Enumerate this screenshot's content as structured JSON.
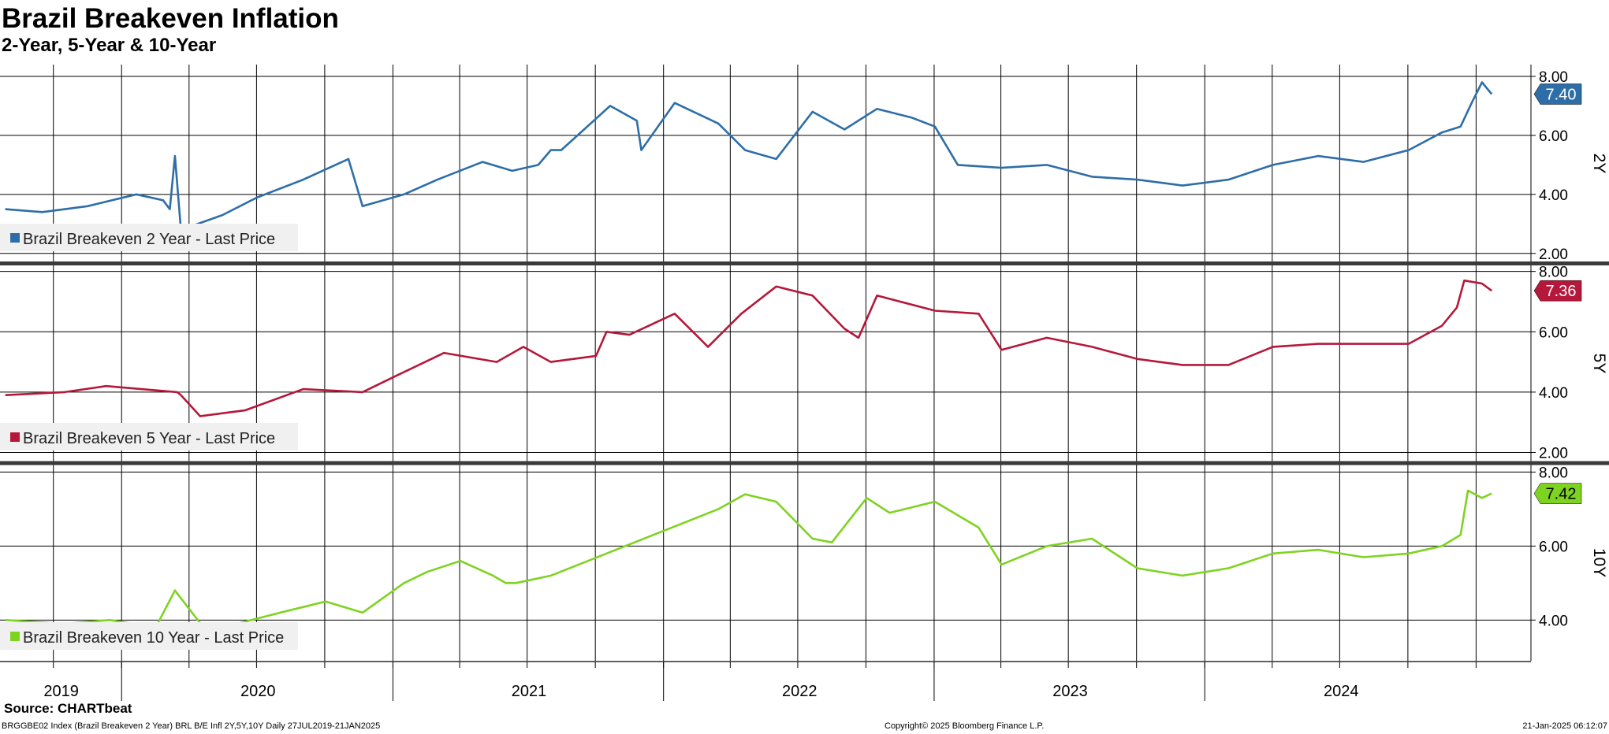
{
  "title": "Brazil Breakeven Inflation",
  "subtitle": "2-Year, 5-Year & 10-Year",
  "source": "Source: CHARTbeat",
  "footer": {
    "left": "BRGGBE02 Index (Brazil Breakeven 2 Year) BRL B/E Infl 2Y,5Y,10Y  Daily 27JUL2019-21JAN2025",
    "middle": "Copyright© 2025 Bloomberg Finance L.P.",
    "right": "21-Jan-2025 06:12:07"
  },
  "colors": {
    "2Y": "#2e6ea8",
    "5Y": "#b5183a",
    "10Y": "#7ed321"
  },
  "chart_data": [
    {
      "type": "line",
      "panel_label": "2Y",
      "series": [
        {
          "name": "Brazil Breakeven 2 Year - Last Price",
          "last_value": "7.40",
          "x": [
            "2019-07-27",
            "2019-09-15",
            "2019-11-15",
            "2020-01-20",
            "2020-02-25",
            "2020-03-05",
            "2020-03-12",
            "2020-03-20",
            "2020-05-15",
            "2020-07-01",
            "2020-09-01",
            "2020-11-01",
            "2020-11-20",
            "2021-01-15",
            "2021-03-01",
            "2021-05-01",
            "2021-06-10",
            "2021-07-15",
            "2021-08-01",
            "2021-08-15",
            "2021-10-20",
            "2021-11-25",
            "2021-12-01",
            "2022-01-15",
            "2022-03-15",
            "2022-04-20",
            "2022-06-01",
            "2022-07-20",
            "2022-09-01",
            "2022-10-15",
            "2022-12-01",
            "2023-01-01",
            "2023-02-01",
            "2023-04-01",
            "2023-06-01",
            "2023-08-01",
            "2023-10-01",
            "2023-12-01",
            "2024-02-01",
            "2024-04-01",
            "2024-06-01",
            "2024-08-01",
            "2024-10-01",
            "2024-11-15",
            "2024-12-10",
            "2024-12-25",
            "2025-01-08",
            "2025-01-21"
          ],
          "values": [
            3.5,
            3.4,
            3.6,
            4.0,
            3.8,
            3.5,
            5.3,
            2.8,
            3.3,
            3.9,
            4.5,
            5.2,
            3.6,
            4.0,
            4.5,
            5.1,
            4.8,
            5.0,
            5.5,
            5.5,
            7.0,
            6.5,
            5.5,
            7.1,
            6.4,
            5.5,
            5.2,
            6.8,
            6.2,
            6.9,
            6.6,
            6.3,
            5.0,
            4.9,
            5.0,
            4.6,
            4.5,
            4.3,
            4.5,
            5.0,
            5.3,
            5.1,
            5.5,
            6.1,
            6.3,
            7.1,
            7.8,
            7.4
          ]
        }
      ],
      "y_ticks": [
        "8.00",
        "6.00",
        "4.00",
        "2.00"
      ],
      "ylim": [
        1.7,
        8.4
      ],
      "grid": true,
      "legend_position": "bottom-left"
    },
    {
      "type": "line",
      "panel_label": "5Y",
      "series": [
        {
          "name": "Brazil Breakeven 5 Year - Last Price",
          "last_value": "7.36",
          "x": [
            "2019-07-27",
            "2019-10-15",
            "2019-12-10",
            "2020-03-15",
            "2020-03-20",
            "2020-04-15",
            "2020-06-15",
            "2020-09-01",
            "2020-11-20",
            "2021-01-01",
            "2021-03-10",
            "2021-05-20",
            "2021-06-25",
            "2021-08-01",
            "2021-10-01",
            "2021-10-15",
            "2021-11-15",
            "2022-01-15",
            "2022-03-01",
            "2022-04-15",
            "2022-06-01",
            "2022-07-20",
            "2022-09-01",
            "2022-09-20",
            "2022-10-15",
            "2023-01-01",
            "2023-03-01",
            "2023-04-01",
            "2023-06-01",
            "2023-08-01",
            "2023-10-01",
            "2023-12-01",
            "2024-02-01",
            "2024-04-01",
            "2024-06-01",
            "2024-08-01",
            "2024-10-01",
            "2024-11-15",
            "2024-12-05",
            "2024-12-15",
            "2025-01-08",
            "2025-01-21"
          ],
          "values": [
            3.9,
            4.0,
            4.2,
            4.0,
            3.9,
            3.2,
            3.4,
            4.1,
            4.0,
            4.5,
            5.3,
            5.0,
            5.5,
            5.0,
            5.2,
            6.0,
            5.9,
            6.6,
            5.5,
            6.6,
            7.5,
            7.2,
            6.1,
            5.8,
            7.2,
            6.7,
            6.6,
            5.4,
            5.8,
            5.5,
            5.1,
            4.9,
            4.9,
            5.5,
            5.6,
            5.6,
            5.6,
            6.2,
            6.8,
            7.7,
            7.6,
            7.36
          ]
        }
      ],
      "y_ticks": [
        "8.00",
        "6.00",
        "4.00",
        "2.00"
      ],
      "ylim": [
        1.7,
        8.2
      ],
      "grid": true,
      "legend_position": "bottom-left"
    },
    {
      "type": "line",
      "panel_label": "10Y",
      "series": [
        {
          "name": "Brazil Breakeven 10 Year - Last Price",
          "last_value": "7.42",
          "x": [
            "2019-07-27",
            "2019-10-15",
            "2019-12-15",
            "2020-02-15",
            "2020-03-12",
            "2020-05-01",
            "2020-05-15",
            "2020-08-01",
            "2020-10-01",
            "2020-11-20",
            "2021-01-15",
            "2021-02-15",
            "2021-04-01",
            "2021-05-15",
            "2021-06-01",
            "2021-06-15",
            "2021-08-01",
            "2022-03-15",
            "2022-04-20",
            "2022-06-01",
            "2022-07-20",
            "2022-08-15",
            "2022-10-01",
            "2022-11-01",
            "2023-01-01",
            "2023-03-01",
            "2023-04-01",
            "2023-06-01",
            "2023-08-01",
            "2023-10-01",
            "2023-12-01",
            "2024-02-01",
            "2024-04-01",
            "2024-06-01",
            "2024-08-01",
            "2024-10-01",
            "2024-11-15",
            "2024-12-10",
            "2024-12-20",
            "2025-01-08",
            "2025-01-21"
          ],
          "values": [
            4.0,
            3.9,
            4.0,
            3.8,
            4.8,
            3.5,
            3.8,
            4.2,
            4.5,
            4.2,
            5.0,
            5.3,
            5.6,
            5.2,
            5.0,
            5.0,
            5.2,
            7.0,
            7.4,
            7.2,
            6.2,
            6.1,
            7.3,
            6.9,
            7.2,
            6.5,
            5.5,
            6.0,
            6.2,
            5.4,
            5.2,
            5.4,
            5.8,
            5.9,
            5.7,
            5.8,
            6.0,
            6.3,
            7.5,
            7.3,
            7.42
          ]
        }
      ],
      "y_ticks": [
        "8.00",
        "6.00",
        "4.00"
      ],
      "ylim": [
        2.9,
        8.2
      ],
      "grid": true,
      "legend_position": "bottom-left"
    }
  ],
  "x_axis": {
    "labels": [
      "2019",
      "2020",
      "2021",
      "2022",
      "2023",
      "2024"
    ],
    "range": [
      "2019-07-20",
      "2025-03-15"
    ],
    "gridlines": [
      "2019-09-30",
      "2019-12-31",
      "2020-03-31",
      "2020-06-30",
      "2020-09-30",
      "2020-12-31",
      "2021-03-31",
      "2021-06-30",
      "2021-09-30",
      "2021-12-31",
      "2022-03-31",
      "2022-06-30",
      "2022-09-30",
      "2022-12-31",
      "2023-03-31",
      "2023-06-30",
      "2023-09-30",
      "2023-12-31",
      "2024-03-31",
      "2024-06-30",
      "2024-09-30",
      "2024-12-31"
    ],
    "year_dividers": [
      "2019-12-31",
      "2020-12-31",
      "2021-12-31",
      "2022-12-31",
      "2023-12-31"
    ]
  }
}
